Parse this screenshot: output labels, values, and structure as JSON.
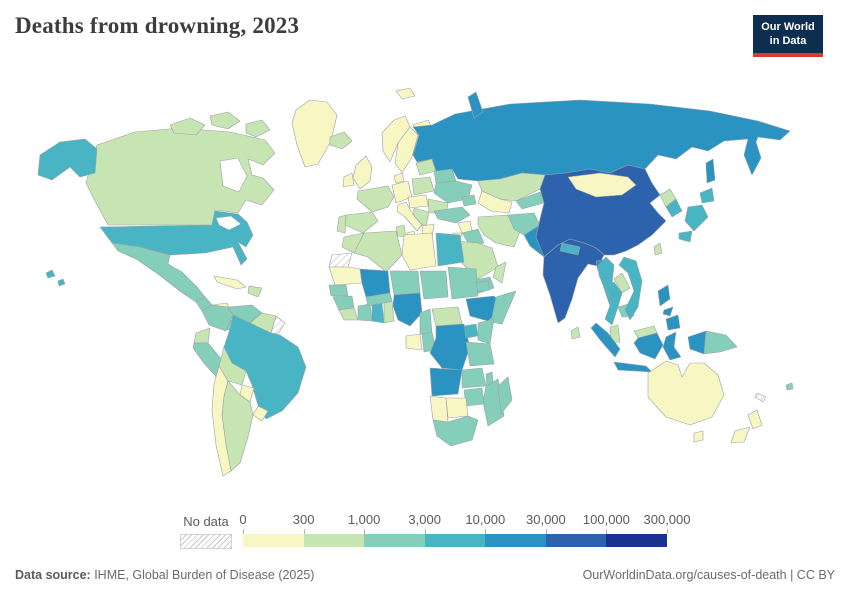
{
  "header": {
    "title": "Deaths from drowning, 2023",
    "logo": {
      "line1": "Our World",
      "line2": "in Data"
    }
  },
  "legend": {
    "no_data_label": "No data",
    "ticks": [
      "0",
      "300",
      "1,000",
      "3,000",
      "10,000",
      "30,000",
      "100,000",
      "300,000"
    ]
  },
  "footer": {
    "source_label": "Data source:",
    "source_text": " IHME, Global Burden of Disease (2025)",
    "right_text": "OurWorldinData.org/causes-of-death | CC BY"
  },
  "chart_data": {
    "type": "choropleth_map",
    "title": "Deaths from drowning, 2023",
    "legend_ticks": [
      0,
      300,
      1000,
      3000,
      10000,
      30000,
      100000,
      300000
    ],
    "color_scale": {
      "no_data_style": "hatched",
      "bins": [
        {
          "range": "0-300",
          "color": "#f8f6c3"
        },
        {
          "range": "300-1,000",
          "color": "#c6e5b3"
        },
        {
          "range": "1,000-3,000",
          "color": "#85ceba"
        },
        {
          "range": "3,000-10,000",
          "color": "#49b5c4"
        },
        {
          "range": "10,000-30,000",
          "color": "#2b93c1"
        },
        {
          "range": "30,000-100,000",
          "color": "#2c63ac"
        },
        {
          "range": "100,000-300,000",
          "color": "#17338f"
        }
      ]
    },
    "regions": {
      "greenland": {
        "n": "Greenland",
        "b": 1
      },
      "canada": {
        "n": "Canada",
        "b": 2
      },
      "usa": {
        "n": "United States",
        "b": 4
      },
      "mexico": {
        "n": "Mexico",
        "b": 3
      },
      "guatemala": {
        "n": "Guatemala",
        "b": 3
      },
      "honduras-nicaragua": {
        "n": "Honduras & Nicaragua",
        "b": 1
      },
      "costa-rica-panama": {
        "n": "Costa Rica & Panama",
        "b": 3
      },
      "cuba": {
        "n": "Cuba",
        "b": 1
      },
      "hispaniola": {
        "n": "Haiti & Dominican Republic",
        "b": 2
      },
      "colombia": {
        "n": "Colombia",
        "b": 3
      },
      "venezuela": {
        "n": "Venezuela",
        "b": 3
      },
      "guyanas": {
        "n": "Guyana & Suriname",
        "b": 2
      },
      "french-guiana": {
        "n": "French Guiana",
        "b": 0
      },
      "ecuador": {
        "n": "Ecuador",
        "b": 2
      },
      "peru": {
        "n": "Peru",
        "b": 3
      },
      "brazil": {
        "n": "Brazil",
        "b": 4
      },
      "bolivia": {
        "n": "Bolivia",
        "b": 2
      },
      "paraguay": {
        "n": "Paraguay",
        "b": 1
      },
      "chile": {
        "n": "Chile",
        "b": 1
      },
      "argentina": {
        "n": "Argentina",
        "b": 2
      },
      "uruguay": {
        "n": "Uruguay",
        "b": 1
      },
      "iceland": {
        "n": "Iceland",
        "b": 2
      },
      "norway": {
        "n": "Norway",
        "b": 1
      },
      "sweden": {
        "n": "Sweden",
        "b": 1
      },
      "finland": {
        "n": "Finland",
        "b": 1
      },
      "baltics": {
        "n": "Baltic states",
        "b": 2
      },
      "denmark": {
        "n": "Denmark",
        "b": 1
      },
      "uk": {
        "n": "United Kingdom",
        "b": 1
      },
      "ireland": {
        "n": "Ireland",
        "b": 1
      },
      "germany": {
        "n": "Germany",
        "b": 1
      },
      "poland": {
        "n": "Poland",
        "b": 2
      },
      "belarus": {
        "n": "Belarus",
        "b": 3
      },
      "ukraine": {
        "n": "Ukraine",
        "b": 3
      },
      "czech-austria": {
        "n": "Czechia & Austria",
        "b": 1
      },
      "romania": {
        "n": "Romania",
        "b": 2
      },
      "balkans": {
        "n": "Balkans",
        "b": 2
      },
      "greece": {
        "n": "Greece",
        "b": 1
      },
      "italy": {
        "n": "Italy",
        "b": 1
      },
      "france": {
        "n": "France",
        "b": 2
      },
      "spain": {
        "n": "Spain",
        "b": 2
      },
      "portugal": {
        "n": "Portugal",
        "b": 2
      },
      "russia": {
        "n": "Russia",
        "b": 5
      },
      "kazakhstan": {
        "n": "Kazakhstan",
        "b": 2
      },
      "uzbek-turkmen": {
        "n": "Uzbekistan & Turkmenistan",
        "b": 1
      },
      "kyrgyz-tajik": {
        "n": "Kyrgyzstan & Tajikistan",
        "b": 3
      },
      "caucasus": {
        "n": "Caucasus",
        "b": 3
      },
      "turkey": {
        "n": "Turkey",
        "b": 3
      },
      "syria": {
        "n": "Syria",
        "b": 1
      },
      "iraq": {
        "n": "Iraq",
        "b": 3
      },
      "iran": {
        "n": "Iran",
        "b": 2
      },
      "afghanistan": {
        "n": "Afghanistan",
        "b": 3
      },
      "pakistan": {
        "n": "Pakistan",
        "b": 5
      },
      "saudi-arabia": {
        "n": "Saudi Arabia",
        "b": 2
      },
      "jordan-israel": {
        "n": "Jordan & Israel",
        "b": 1
      },
      "yemen": {
        "n": "Yemen",
        "b": 3
      },
      "oman": {
        "n": "Oman",
        "b": 2
      },
      "india": {
        "n": "India",
        "b": 6
      },
      "nepal": {
        "n": "Nepal",
        "b": 4
      },
      "bangladesh": {
        "n": "Bangladesh",
        "b": 5
      },
      "sri-lanka": {
        "n": "Sri Lanka",
        "b": 2
      },
      "china": {
        "n": "China",
        "b": 6
      },
      "mongolia": {
        "n": "Mongolia",
        "b": 1
      },
      "north-korea": {
        "n": "North Korea",
        "b": 2
      },
      "south-korea": {
        "n": "South Korea",
        "b": 4
      },
      "japan": {
        "n": "Japan",
        "b": 4
      },
      "taiwan": {
        "n": "Taiwan",
        "b": 2
      },
      "myanmar": {
        "n": "Myanmar",
        "b": 4
      },
      "laos": {
        "n": "Laos",
        "b": 2
      },
      "thailand": {
        "n": "Thailand",
        "b": 4
      },
      "cambodia": {
        "n": "Cambodia",
        "b": 3
      },
      "vietnam": {
        "n": "Vietnam",
        "b": 4
      },
      "malaysia": {
        "n": "Malaysia",
        "b": 2
      },
      "indonesia": {
        "n": "Indonesia",
        "b": 5
      },
      "philippines": {
        "n": "Philippines",
        "b": 5
      },
      "papua-new-guinea": {
        "n": "Papua New Guinea",
        "b": 3
      },
      "fiji": {
        "n": "Fiji",
        "b": 3
      },
      "new-caledonia": {
        "n": "New Caledonia",
        "b": 0
      },
      "morocco": {
        "n": "Morocco",
        "b": 2
      },
      "western-sahara": {
        "n": "Western Sahara",
        "b": 0
      },
      "algeria": {
        "n": "Algeria",
        "b": 2
      },
      "tunisia": {
        "n": "Tunisia",
        "b": 2
      },
      "libya": {
        "n": "Libya",
        "b": 1
      },
      "egypt": {
        "n": "Egypt",
        "b": 4
      },
      "mauritania": {
        "n": "Mauritania",
        "b": 1
      },
      "senegal": {
        "n": "Senegal",
        "b": 3
      },
      "mali": {
        "n": "Mali",
        "b": 5
      },
      "niger": {
        "n": "Niger",
        "b": 3
      },
      "chad": {
        "n": "Chad",
        "b": 3
      },
      "sudan": {
        "n": "Sudan",
        "b": 3
      },
      "eritrea": {
        "n": "Eritrea",
        "b": 3
      },
      "ethiopia": {
        "n": "Ethiopia",
        "b": 5
      },
      "somalia": {
        "n": "Somalia",
        "b": 3
      },
      "guinea": {
        "n": "Guinea",
        "b": 3
      },
      "sierra-leone-liberia": {
        "n": "Sierra Leone & Liberia",
        "b": 2
      },
      "ivory-coast": {
        "n": "Côte d'Ivoire",
        "b": 3
      },
      "ghana": {
        "n": "Ghana",
        "b": 4
      },
      "togo-benin": {
        "n": "Togo & Benin",
        "b": 2
      },
      "burkina-faso": {
        "n": "Burkina Faso",
        "b": 3
      },
      "nigeria": {
        "n": "Nigeria",
        "b": 5
      },
      "cameroon": {
        "n": "Cameroon",
        "b": 3
      },
      "central-african-republic": {
        "n": "Central African Republic",
        "b": 2
      },
      "gabon": {
        "n": "Gabon",
        "b": 1
      },
      "congo": {
        "n": "Congo",
        "b": 3
      },
      "dr-congo": {
        "n": "Democratic Republic of Congo",
        "b": 5
      },
      "uganda": {
        "n": "Uganda",
        "b": 4
      },
      "kenya": {
        "n": "Kenya",
        "b": 3
      },
      "tanzania": {
        "n": "Tanzania",
        "b": 3
      },
      "angola": {
        "n": "Angola",
        "b": 5
      },
      "zambia": {
        "n": "Zambia",
        "b": 3
      },
      "malawi": {
        "n": "Malawi",
        "b": 3
      },
      "mozambique": {
        "n": "Mozambique",
        "b": 3
      },
      "zimbabwe": {
        "n": "Zimbabwe",
        "b": 3
      },
      "botswana": {
        "n": "Botswana",
        "b": 1
      },
      "namibia": {
        "n": "Namibia",
        "b": 1
      },
      "south-africa": {
        "n": "South Africa",
        "b": 3
      },
      "madagascar": {
        "n": "Madagascar",
        "b": 3
      },
      "australia": {
        "n": "Australia",
        "b": 1
      },
      "new-zealand": {
        "n": "New Zealand",
        "b": 1
      }
    }
  }
}
